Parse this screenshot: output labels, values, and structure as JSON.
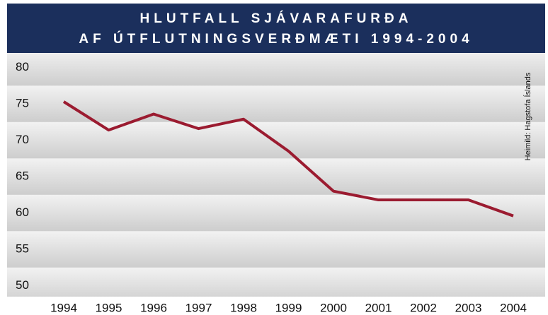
{
  "chart_data": {
    "type": "line",
    "title": [
      "HLUTFALL SJÁVARAFURÐA",
      "AF ÚTFLUTNINGSVERÐMÆTI 1994-2004"
    ],
    "annotation": "Heimild: Hagstofa Íslands",
    "categories": [
      "1994",
      "1995",
      "1996",
      "1997",
      "1998",
      "1999",
      "2000",
      "2001",
      "2002",
      "2003",
      "2004"
    ],
    "series": [
      {
        "name": null,
        "color": "#9b1b30",
        "values": [
          75.3,
          71.4,
          73.6,
          71.6,
          72.9,
          68.5,
          63.0,
          61.8,
          61.8,
          61.8,
          59.6
        ]
      }
    ],
    "ylim": [
      48.5,
      82
    ],
    "yticks": [
      50,
      55,
      60,
      65,
      70,
      75,
      80
    ],
    "grid": true
  }
}
